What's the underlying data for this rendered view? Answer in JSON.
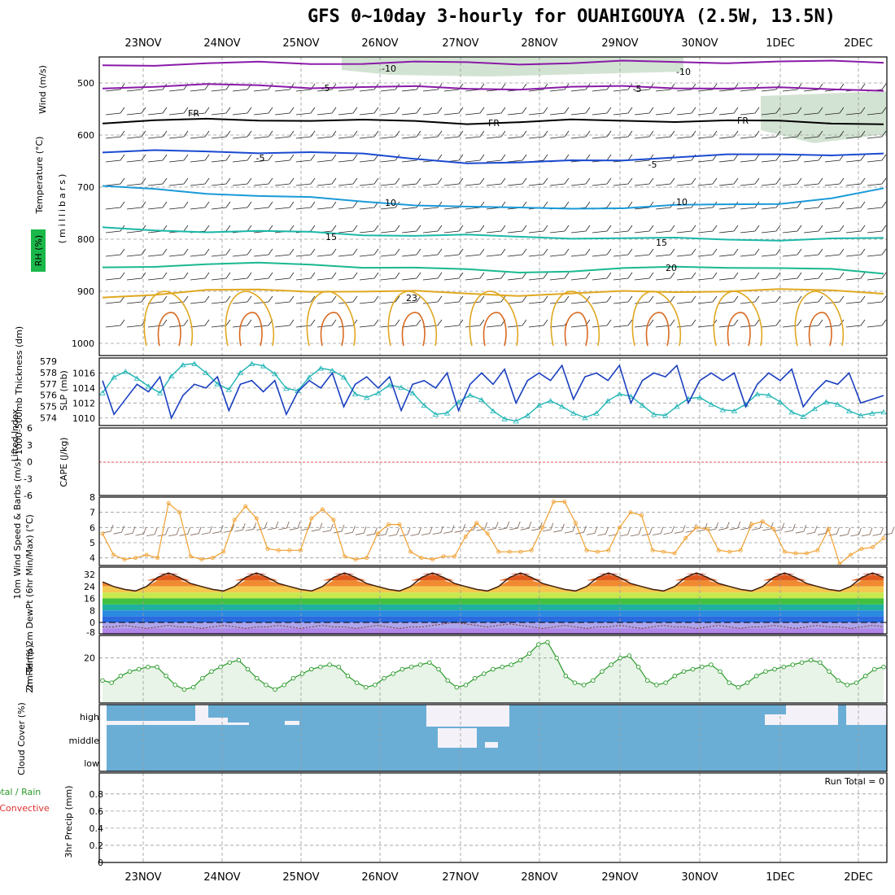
{
  "title": "GFS 0~10day 3-hourly for OUAHIGOUYA (2.5W, 13.5N)",
  "dates": [
    "23NOV",
    "24NOV",
    "25NOV",
    "26NOV",
    "27NOV",
    "28NOV",
    "29NOV",
    "30NOV",
    "1DEC",
    "2DEC"
  ],
  "colors": {
    "frame": "#000000",
    "grid": "#9a9a9a",
    "slp": "#1a3fc0",
    "thickness": "#22b5b5",
    "wind_speed": "#f0a030",
    "temp_max_fill": "#e0401a",
    "rh_line": "#2a9a2a",
    "rh_fill": "#e8f4e8",
    "cloud": "#6aaed6",
    "clear": "#f4f2f8",
    "zero_line": "#e05050",
    "barb": "#222222"
  },
  "chart_data": [
    {
      "panel": "upper_air",
      "type": "line",
      "ylabel": "(millibars)",
      "side_label_wind": "Wind (m/s)",
      "side_label_temp": "Temperature (°C)",
      "side_label_rh": "RH (%)",
      "ylim": [
        1000,
        450
      ],
      "yticks": [
        500,
        600,
        700,
        800,
        900,
        1000
      ],
      "isotherm_labels": [
        "-10",
        "-5",
        "FR",
        "-5",
        "10",
        "15",
        "20",
        "23"
      ],
      "isotherms": [
        {
          "label": "-10",
          "color": "#8a1aa8",
          "values": [
            466,
            464,
            463,
            462,
            462,
            461,
            461,
            462,
            462,
            461,
            460,
            460,
            459,
            459,
            460,
            460
          ]
        },
        {
          "label": "-5",
          "color": "#8a1aa8",
          "values": [
            508,
            506,
            505,
            505,
            507,
            508,
            509,
            510,
            510,
            509,
            508,
            508,
            509,
            511,
            513,
            512
          ]
        },
        {
          "label": "FR",
          "color": "#000000",
          "values": [
            575,
            573,
            571,
            570,
            571,
            573,
            574,
            576,
            575,
            573,
            572,
            572,
            573,
            575,
            576,
            577
          ]
        },
        {
          "label": "-5",
          "color": "#1a4ad0",
          "values": [
            633,
            632,
            631,
            632,
            634,
            638,
            644,
            652,
            655,
            650,
            646,
            642,
            640,
            637,
            636,
            636
          ]
        },
        {
          "label": "10",
          "color": "#1a9ad8",
          "values": [
            700,
            705,
            710,
            716,
            722,
            728,
            732,
            738,
            742,
            740,
            738,
            736,
            735,
            730,
            720,
            705
          ]
        },
        {
          "label": "15",
          "color": "#1ab8a8",
          "values": [
            780,
            782,
            784,
            786,
            788,
            790,
            792,
            794,
            796,
            796,
            798,
            800,
            800,
            800,
            800,
            800
          ]
        },
        {
          "label": "20",
          "color": "#1ab890",
          "values": [
            855,
            850,
            848,
            848,
            848,
            852,
            856,
            860,
            862,
            860,
            858,
            854,
            852,
            855,
            860,
            866
          ]
        },
        {
          "label": "23",
          "color": "#e0a820",
          "values": [
            910,
            905,
            900,
            898,
            898,
            900,
            902,
            904,
            906,
            905,
            902,
            900,
            898,
            898,
            900,
            902
          ]
        }
      ]
    },
    {
      "panel": "slp_thickness",
      "type": "line",
      "ylabel_left": "1000-500mb Thickness (dm)",
      "ylabel_right": "SLP (mb)",
      "yticks_left": [
        574,
        575,
        576,
        577,
        578,
        579
      ],
      "yticks_right": [
        1010,
        1012,
        1014,
        1016
      ],
      "series": [
        {
          "name": "SLP",
          "values": [
            1015.0,
            1010.5,
            1012.5,
            1014.5,
            1013.5,
            1015.5,
            1010.0,
            1013.0,
            1014.5,
            1014.0,
            1015.5,
            1011.0,
            1014.5,
            1015.0,
            1013.5,
            1015.0,
            1010.5,
            1013.5,
            1015.0,
            1014.0,
            1016.0,
            1011.5,
            1014.5,
            1015.5,
            1014.0,
            1015.5,
            1011.0,
            1014.5,
            1015.0,
            1014.0,
            1016.0,
            1011.0,
            1014.5,
            1016.0,
            1014.5,
            1016.5,
            1012.0,
            1015.0,
            1016.0,
            1015.0,
            1017.0,
            1012.5,
            1015.5,
            1016.0,
            1015.0,
            1017.0,
            1012.0,
            1015.0,
            1016.0,
            1015.5,
            1017.0,
            1012.0,
            1015.0,
            1016.0,
            1015.0,
            1016.0,
            1011.5,
            1014.5,
            1016.0,
            1015.0,
            1016.5,
            1011.5,
            1013.5,
            1015.0,
            1014.5,
            1016.0,
            1012.0,
            1012.5,
            1013.0
          ]
        },
        {
          "name": "Thickness",
          "values": [
            576.2,
            577.6,
            578.1,
            577.5,
            576.8,
            576.2,
            577.7,
            578.7,
            578.8,
            578.0,
            577.0,
            576.5,
            578.0,
            578.8,
            578.6,
            577.9,
            576.6,
            576.4,
            577.6,
            578.4,
            578.2,
            577.6,
            576.1,
            575.8,
            576.2,
            576.9,
            576.7,
            576.2,
            575.1,
            574.3,
            574.4,
            575.4,
            576.0,
            575.6,
            574.6,
            573.9,
            573.7,
            574.2,
            575.1,
            575.5,
            575.0,
            574.4,
            574.0,
            574.4,
            575.5,
            576.1,
            575.9,
            575.1,
            574.3,
            574.2,
            575.0,
            575.7,
            575.8,
            575.2,
            574.7,
            574.6,
            575.2,
            576.1,
            576.0,
            575.4,
            574.5,
            574.1,
            574.8,
            575.4,
            575.2,
            574.6,
            574.2,
            574.4,
            574.5
          ]
        }
      ]
    },
    {
      "panel": "stability",
      "type": "line",
      "ylabel_left": "Lifted Index",
      "ylabel_right": "CAPE (J/kg)",
      "yticks": [
        "6",
        "3",
        "0",
        "-3",
        "-6"
      ],
      "zero_line": 0
    },
    {
      "panel": "wind_10m",
      "type": "line",
      "ylabel": "10m Wind Speed & Barbs (m/s)",
      "yticks": [
        4,
        5,
        6,
        7,
        8
      ],
      "values": [
        5.6,
        4.2,
        3.9,
        4.0,
        4.2,
        4.0,
        7.6,
        7.0,
        4.1,
        3.9,
        4.0,
        4.4,
        6.5,
        7.4,
        6.6,
        4.6,
        4.5,
        4.5,
        4.5,
        6.6,
        7.2,
        6.5,
        4.1,
        3.9,
        4.0,
        5.6,
        6.2,
        6.2,
        4.4,
        4.0,
        3.9,
        4.1,
        4.1,
        5.4,
        6.3,
        5.6,
        4.4,
        4.4,
        4.4,
        4.5,
        6.0,
        7.7,
        7.7,
        6.3,
        4.5,
        4.4,
        4.5,
        6.0,
        7.0,
        6.8,
        4.5,
        4.4,
        4.3,
        5.3,
        6.0,
        5.9,
        4.5,
        4.4,
        4.5,
        6.2,
        6.4,
        5.9,
        4.4,
        4.3,
        4.3,
        4.5,
        5.9,
        3.6,
        4.2,
        4.6,
        4.7,
        5.3
      ]
    },
    {
      "panel": "temperature",
      "type": "area",
      "ylabel": "2m Temp 2m DewPt (6hr Min/Max) (°C)",
      "yticks": [
        -8,
        0,
        8,
        16,
        24,
        32
      ],
      "temp": [
        27,
        24,
        22,
        21,
        24,
        30,
        33,
        30,
        26,
        24,
        22,
        21,
        24,
        30,
        33,
        30,
        26,
        24,
        22,
        21,
        24,
        30,
        33,
        30,
        26,
        24,
        22,
        21,
        24,
        30,
        33,
        30,
        26,
        24,
        22,
        21,
        24,
        30,
        33,
        30,
        26,
        24,
        22,
        21,
        24,
        30,
        33,
        30,
        26,
        24,
        22,
        21,
        24,
        30,
        33,
        30,
        26,
        24,
        22,
        21,
        24,
        30,
        33,
        30,
        26,
        24,
        22,
        21,
        24,
        30,
        33,
        30
      ],
      "dewpoint": [
        -3,
        -3,
        -2,
        -3,
        -4,
        -3,
        -2,
        -3,
        -3,
        -4,
        -3,
        -2,
        -3,
        -4,
        -3,
        -3,
        -2,
        -3,
        -4,
        -3,
        -2,
        -3,
        -3,
        -4,
        -3,
        -2,
        -3,
        -4,
        -3,
        -3,
        -2,
        -1,
        0,
        -1,
        -2,
        -3,
        -2,
        -1,
        -2,
        -3,
        -4,
        -3,
        -2,
        -3,
        -4,
        -3,
        -3,
        -2,
        -3,
        -4,
        -3,
        -2,
        -3,
        -3,
        -4,
        -3,
        -2,
        -3,
        -4,
        -3,
        -3,
        -2,
        -3,
        -4,
        -3,
        -2,
        -3,
        -3,
        -4,
        -3,
        -2,
        -3
      ]
    },
    {
      "panel": "rh_2m",
      "type": "area",
      "ylabel": "2m RH (%)",
      "yticks": [
        20
      ],
      "ylim": [
        0,
        30
      ],
      "values": [
        10,
        9,
        12,
        14,
        15,
        16,
        16,
        12,
        8,
        6,
        7,
        11,
        14,
        16,
        18,
        19,
        15,
        11,
        8,
        6,
        8,
        11,
        13,
        15,
        16,
        17,
        16,
        12,
        9,
        7,
        8,
        11,
        13,
        15,
        16,
        17,
        18,
        15,
        10,
        7,
        8,
        11,
        13,
        15,
        16,
        17,
        19,
        22,
        26,
        27,
        20,
        12,
        9,
        8,
        10,
        14,
        17,
        20,
        21,
        16,
        10,
        8,
        9,
        12,
        14,
        15,
        16,
        17,
        14,
        9,
        7,
        9,
        12,
        14,
        15,
        16,
        17,
        18,
        19,
        18,
        14,
        10,
        8,
        9,
        12,
        15,
        16
      ]
    },
    {
      "panel": "cloud_cover",
      "type": "heatmap",
      "ylabel": "Cloud Cover (%)",
      "levels": [
        "high",
        "middle",
        "low"
      ]
    },
    {
      "panel": "precip",
      "type": "bar",
      "ylabel_left": "Total / Rain Convective",
      "ylabel_right": "3hr Precip (mm)",
      "yticks": [
        "0",
        "0.2",
        "0.4",
        "0.6",
        "0.8"
      ],
      "ylim": [
        0,
        0.95
      ],
      "run_total_label": "Run Total = 0",
      "values": []
    }
  ]
}
